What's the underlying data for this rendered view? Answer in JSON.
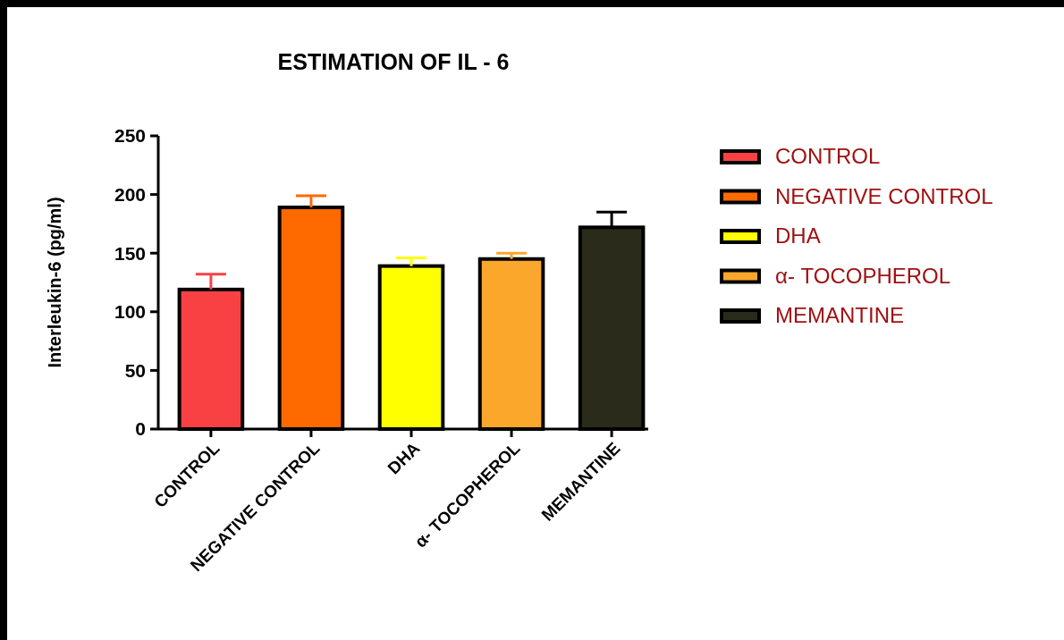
{
  "chart_data": {
    "type": "bar",
    "title": "ESTIMATION OF IL - 6",
    "ylabel": "Interleukin-6 (pg/ml)",
    "categories": [
      "CONTROL",
      "NEGATIVE CONTROL",
      "DHA",
      "α- TOCOPHEROL",
      "MEMANTINE"
    ],
    "series": [
      {
        "name": "CONTROL",
        "color": "#f94144",
        "values": [
          119,
          null,
          null,
          null,
          null
        ],
        "errors": [
          [
            119,
            132
          ],
          null,
          null,
          null,
          null
        ]
      },
      {
        "name": "NEGATIVE CONTROL",
        "color": "#ff6a00",
        "values": [
          null,
          189,
          null,
          null,
          null
        ],
        "errors": [
          null,
          [
            189,
            199
          ],
          null,
          null,
          null
        ]
      },
      {
        "name": "DHA",
        "color": "#ffff00",
        "values": [
          null,
          null,
          139,
          null,
          null
        ],
        "errors": [
          null,
          null,
          [
            139,
            146
          ],
          null,
          null
        ]
      },
      {
        "name": "α- TOCOPHEROL",
        "color": "#fba72c",
        "values": [
          null,
          null,
          null,
          145,
          null
        ],
        "errors": [
          null,
          null,
          null,
          [
            145,
            150
          ],
          null
        ]
      },
      {
        "name": "MEMANTINE",
        "color": "#2b2b1c",
        "values": [
          null,
          null,
          null,
          null,
          172
        ],
        "errors": [
          null,
          null,
          null,
          null,
          [
            172,
            185
          ]
        ]
      }
    ],
    "ylim": [
      0,
      250
    ],
    "yticks": [
      0,
      50,
      100,
      150,
      200,
      250
    ],
    "legend": "right"
  }
}
